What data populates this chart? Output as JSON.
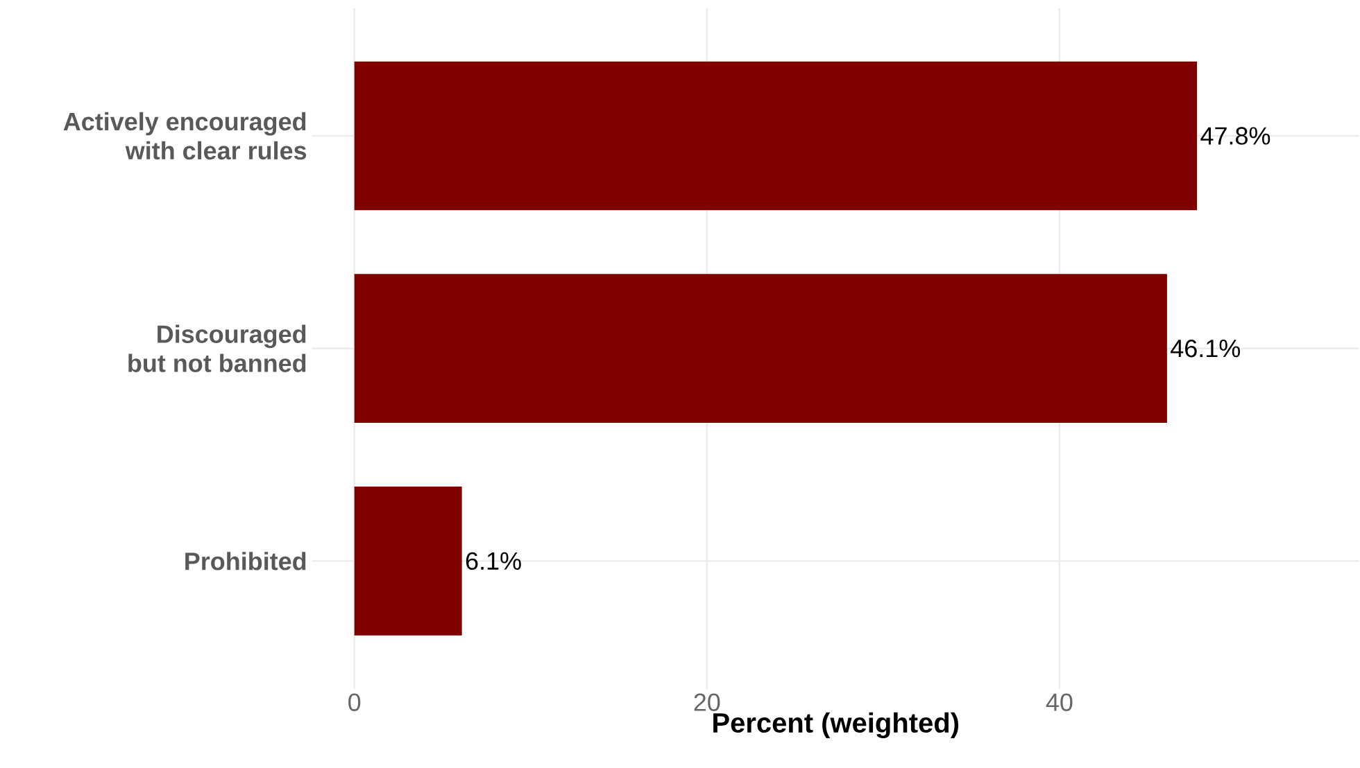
{
  "chart_data": {
    "type": "bar",
    "orientation": "horizontal",
    "xlabel": "Percent (weighted)",
    "categories": [
      "Actively encouraged\nwith clear rules",
      "Discouraged\nbut not banned",
      "Prohibited"
    ],
    "values": [
      47.8,
      46.1,
      6.1
    ],
    "value_labels": [
      "47.8%",
      "46.1%",
      "6.1%"
    ],
    "color": "#800000",
    "xlim": [
      -2.4,
      57
    ],
    "xticks": [
      0,
      20,
      40
    ],
    "grid": true
  }
}
